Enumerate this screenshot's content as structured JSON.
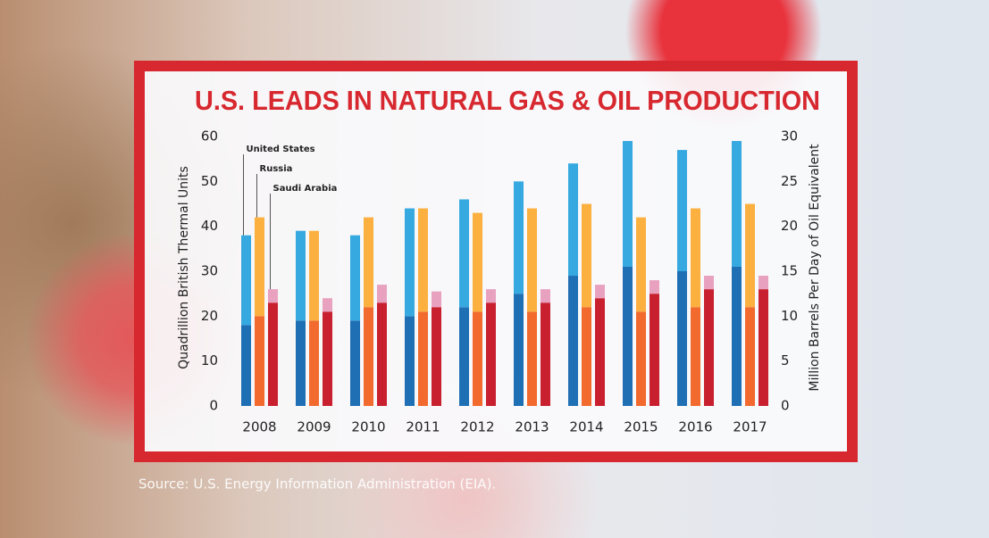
{
  "chart_data": {
    "type": "grouped-stacked-bar",
    "title": "U.S. LEADS IN NATURAL GAS & OIL PRODUCTION",
    "y_label": "Quadrillion British Thermal Units",
    "y2_label": "Million Barrels Per Day of Oil Equivalent",
    "source": "Source: U.S. Energy Information Administration (EIA).",
    "categories": [
      "2008",
      "2009",
      "2010",
      "2011",
      "2012",
      "2013",
      "2014",
      "2015",
      "2016",
      "2017"
    ],
    "ylim": [
      0,
      60
    ],
    "yticks": [
      0,
      10,
      20,
      30,
      40,
      50,
      60
    ],
    "y2lim": [
      0,
      30
    ],
    "y2ticks": [
      0,
      5,
      10,
      15,
      20,
      25,
      30
    ],
    "groups": [
      {
        "name": "United States",
        "series": [
          {
            "color": "#1f6fb5",
            "values": [
              18,
              19,
              19,
              20,
              22,
              25,
              29,
              31,
              30,
              31
            ]
          },
          {
            "color": "#36a9e1",
            "values": [
              20,
              20,
              19,
              24,
              24,
              25,
              25,
              28,
              27,
              28
            ]
          }
        ]
      },
      {
        "name": "Russia",
        "series": [
          {
            "color": "#f26a2e",
            "values": [
              20,
              19,
              22,
              21,
              21,
              21,
              22,
              21,
              22,
              22
            ]
          },
          {
            "color": "#fbb040",
            "values": [
              22,
              20,
              20,
              23,
              22,
              23,
              23,
              21,
              22,
              23
            ]
          }
        ]
      },
      {
        "name": "Saudi Arabia",
        "series": [
          {
            "color": "#c8202f",
            "values": [
              23,
              21,
              23,
              22,
              23,
              23,
              24,
              25,
              26,
              26
            ]
          },
          {
            "color": "#e8a2c0",
            "values": [
              3,
              3,
              4,
              3.5,
              3,
              3,
              3,
              3,
              3,
              3
            ]
          }
        ]
      }
    ]
  }
}
